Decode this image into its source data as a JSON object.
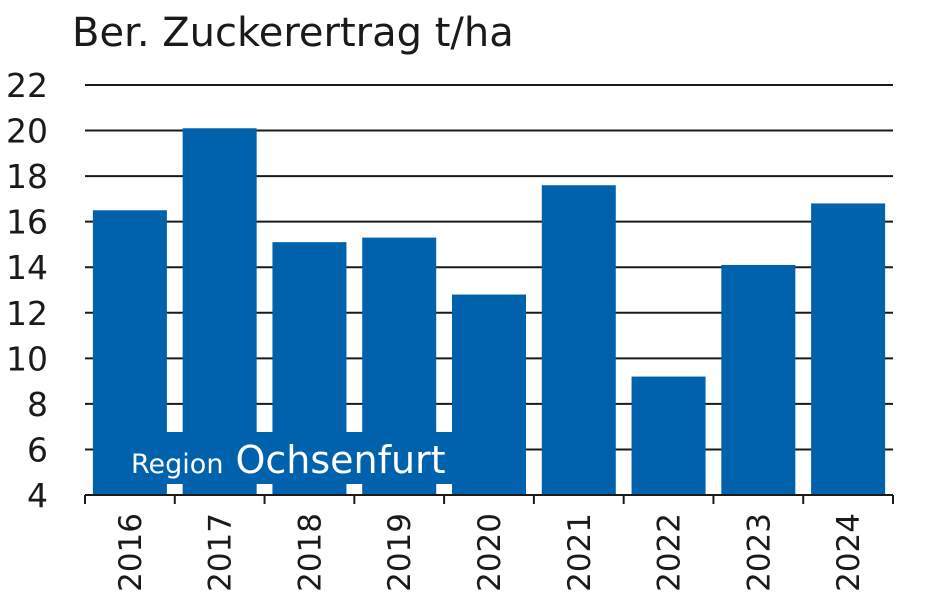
{
  "chart_data": {
    "type": "bar",
    "title": "Ber. Zuckerertrag  t/ha",
    "categories": [
      "2016",
      "2017",
      "2018",
      "2019",
      "2020",
      "2021",
      "2022",
      "2023",
      "2024"
    ],
    "values": [
      16.5,
      20.1,
      15.1,
      15.3,
      12.8,
      17.6,
      9.2,
      14.1,
      16.8
    ],
    "ylim": [
      4,
      22
    ],
    "yticks": [
      4,
      6,
      8,
      10,
      12,
      14,
      16,
      18,
      20,
      22
    ],
    "grid": true,
    "bar_color": "#0061ad",
    "annotation": {
      "prefix": "Region",
      "name": "Ochsenfurt"
    }
  }
}
